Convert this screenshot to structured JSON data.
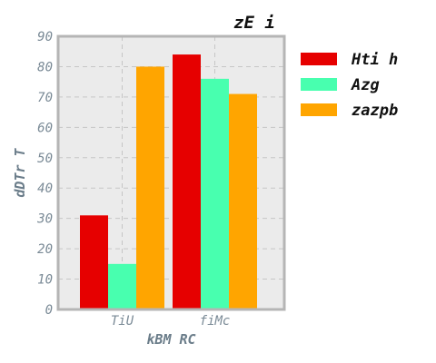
{
  "chart_data": {
    "type": "bar",
    "title": "zE  i",
    "xlabel": "kBM  RC",
    "ylabel": "dDTr T",
    "categories": [
      "TiU",
      "fiMc"
    ],
    "series": [
      {
        "name": "Hti h",
        "values": [
          31,
          84
        ],
        "color": "#e60000"
      },
      {
        "name": "Azg",
        "values": [
          15,
          76
        ],
        "color": "#48ffaf"
      },
      {
        "name": "zazpb",
        "values": [
          80,
          71
        ],
        "color": "#ffa500"
      }
    ],
    "ylim": [
      0,
      90
    ],
    "yticks": [
      0,
      10,
      20,
      30,
      40,
      50,
      60,
      70,
      80,
      90
    ],
    "grid": true,
    "legend_position": "right"
  }
}
